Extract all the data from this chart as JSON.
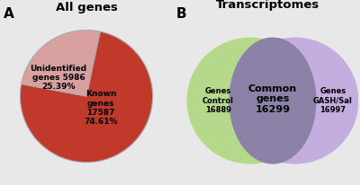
{
  "pie_title": "All genes",
  "panel_a_label": "A",
  "panel_b_label": "B",
  "venn_title": "Transcriptomes",
  "pie_slices": [
    74.61,
    25.39
  ],
  "pie_label_known": "Known\ngenes\n17587\n74.61%",
  "pie_label_unknown": "Unidentified\ngenes 5986\n25.39%",
  "pie_color_known": "#c0392b",
  "pie_color_unknown": "#d9a0a0",
  "pie_startangle": 78,
  "venn_left_color": "#b5d98a",
  "venn_right_color": "#c4aee0",
  "venn_overlap_color": "#8c82a8",
  "venn_left_label": "Genes\nControl\n16889",
  "venn_right_label": "Genes\nGASH/Sal\n16997",
  "venn_center_label": "Common\ngenes\n16299",
  "background_color": "#ffffff",
  "fig_bg": "#e8e8e8"
}
